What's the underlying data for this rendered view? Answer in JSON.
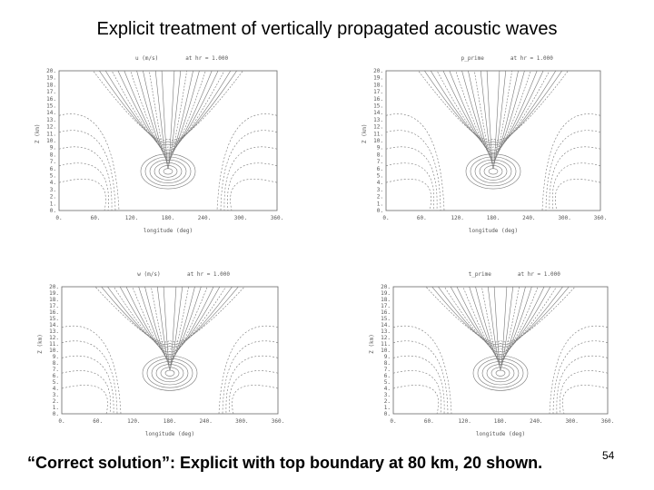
{
  "title": "Explicit treatment of vertically propagated acoustic waves",
  "axes": {
    "xlabel": "longitude (deg)",
    "ylabel": "Z (km)",
    "xticks": [
      "0.",
      "60.",
      "120.",
      "180.",
      "240.",
      "300.",
      "360."
    ],
    "yticks": [
      "0.",
      "1.",
      "2.",
      "3.",
      "4.",
      "5.",
      "6.",
      "7.",
      "8.",
      "9.",
      "10.",
      "11.",
      "12.",
      "13.",
      "14.",
      "15.",
      "16.",
      "17.",
      "18.",
      "19.",
      "20."
    ]
  },
  "panels": [
    {
      "variable": "u (m/s)",
      "time": "at hr = 1.000"
    },
    {
      "variable": "p_prime",
      "time": "at hr = 1.000"
    },
    {
      "variable": "w (m/s)",
      "time": "at hr = 1.000"
    },
    {
      "variable": "t_prime",
      "time": "at hr = 1.000"
    }
  ],
  "caption": "“Correct solution”:  Explicit with top boundary at 80 km, 20 shown.",
  "page_number": "54"
}
